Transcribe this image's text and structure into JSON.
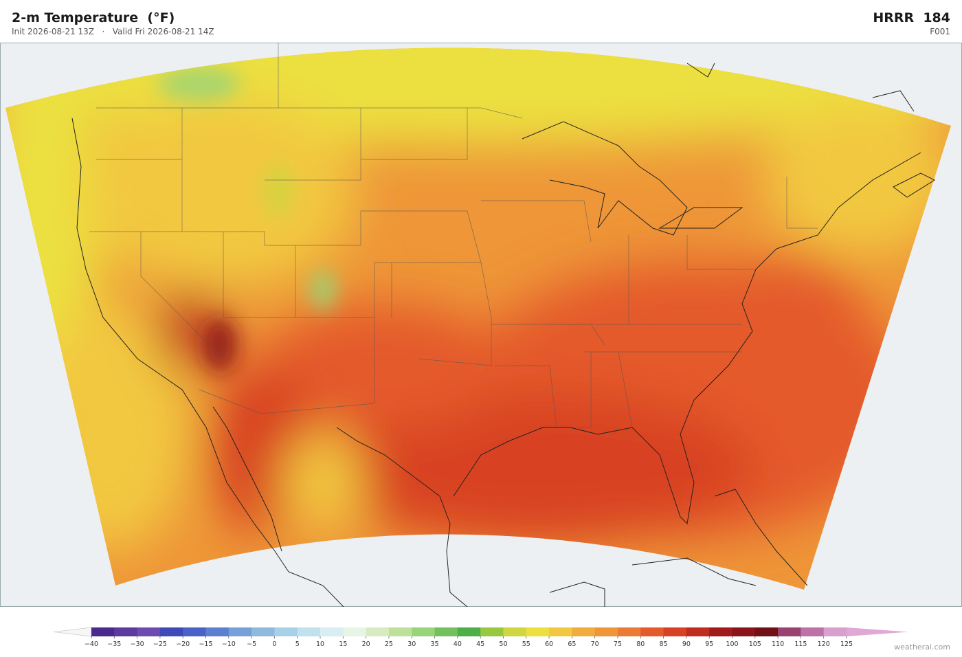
{
  "header": {
    "title": "2-m Temperature  (°F)",
    "subtitle": "Init 2026-08-21 13Z   ·   Valid Fri 2026-08-21 14Z",
    "model": "HRRR  184",
    "forecast_hour": "F001"
  },
  "colorbar": {
    "ticks": [
      {
        "value": -40,
        "label": "−40"
      },
      {
        "value": -35,
        "label": "−35"
      },
      {
        "value": -30,
        "label": "−30"
      },
      {
        "value": -25,
        "label": "−25"
      },
      {
        "value": -20,
        "label": "−20"
      },
      {
        "value": -15,
        "label": "−15"
      },
      {
        "value": -10,
        "label": "−10"
      },
      {
        "value": -5,
        "label": "−5"
      },
      0,
      5,
      10,
      15,
      20,
      25,
      30,
      35,
      40,
      45,
      50,
      55,
      60,
      65,
      70,
      75,
      80,
      85,
      90,
      95,
      100,
      105,
      110,
      115,
      120,
      125
    ],
    "colors": [
      "#4a2a8c",
      "#5e3a9e",
      "#6e4bb0",
      "#3f49b8",
      "#4a62c8",
      "#5b80d0",
      "#76a0d8",
      "#8ebade",
      "#a8d0e6",
      "#c0e2ee",
      "#d8eef2",
      "#e6f5e6",
      "#d6ecc0",
      "#bee09a",
      "#98d478",
      "#74c05c",
      "#4caf48",
      "#98c840",
      "#cfd640",
      "#ece040",
      "#f2c840",
      "#f0ac3c",
      "#ee9638",
      "#ea7a34",
      "#e45a2c",
      "#d84224",
      "#c02c20",
      "#a01c1c",
      "#8a1418",
      "#721018",
      "#9a4270",
      "#bc72a8",
      "#d8a0cc"
    ],
    "under_color": "#f6f6f6",
    "over_color": "#e0a8d4"
  },
  "watermark": "weatherai.com"
}
